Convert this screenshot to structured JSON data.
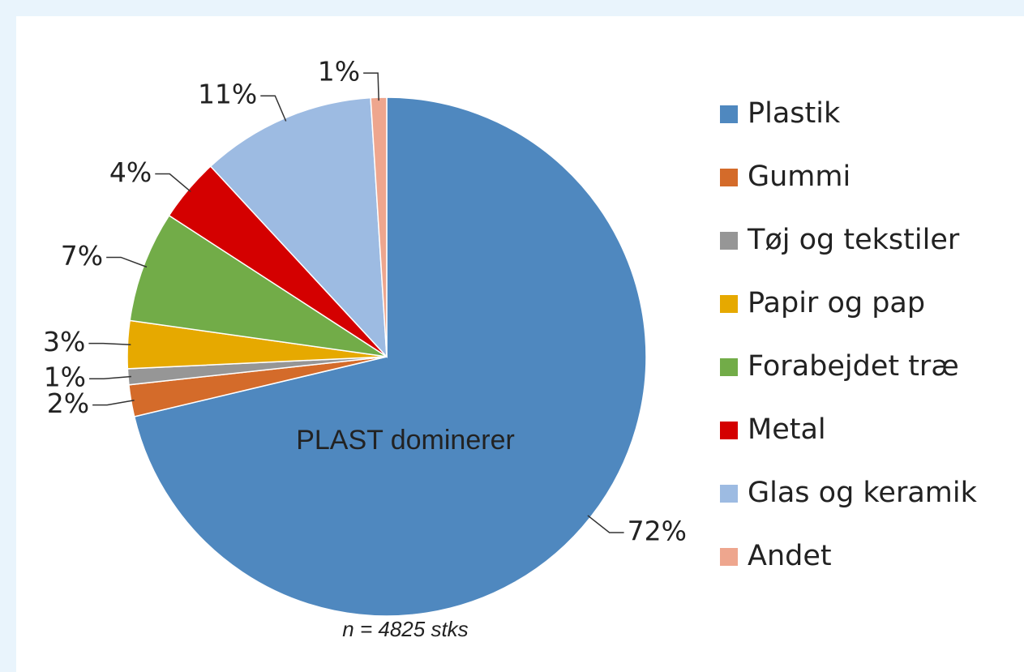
{
  "chart_data": {
    "type": "pie",
    "categories": [
      "Plastik",
      "Gummi",
      "Tøj og tekstiler",
      "Papir og pap",
      "Forabejdet træ",
      "Metal",
      "Glas og keramik",
      "Andet"
    ],
    "values": [
      72,
      2,
      1,
      3,
      7,
      4,
      11,
      1
    ],
    "value_labels": [
      "72%",
      "2%",
      "1%",
      "3%",
      "7%",
      "4%",
      "11%",
      "1%"
    ],
    "colors": [
      "#4f88bf",
      "#d46b2a",
      "#969696",
      "#e6a900",
      "#72ac48",
      "#d40000",
      "#9dbbe2",
      "#eea68e"
    ],
    "annotation": "PLAST dominerer",
    "footnote": "n = 4825 stks",
    "legend": "right"
  }
}
